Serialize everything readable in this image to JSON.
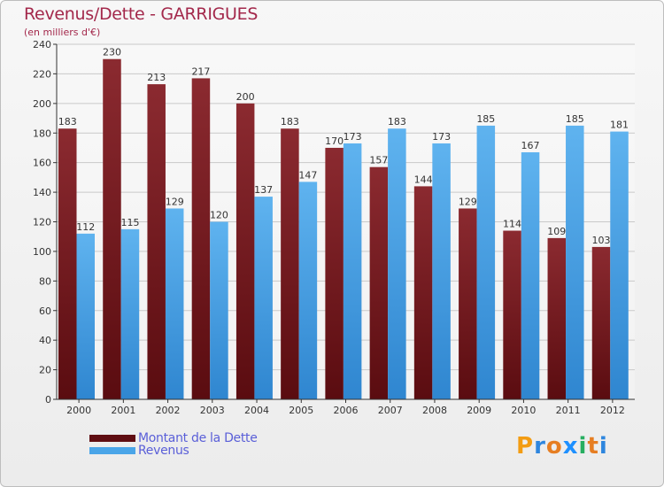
{
  "title": "Revenus/Dette - GARRIGUES",
  "subtitle": "(en milliers d'€)",
  "logo": {
    "text": "Proxiti",
    "colors": [
      "#f39c12",
      "#2e86de",
      "#e67e22",
      "#1e90ff",
      "#27ae60",
      "#e67e22",
      "#2e86de"
    ]
  },
  "chart_data": {
    "type": "bar",
    "categories": [
      "2000",
      "2001",
      "2002",
      "2003",
      "2004",
      "2005",
      "2006",
      "2007",
      "2008",
      "2009",
      "2010",
      "2011",
      "2012"
    ],
    "series": [
      {
        "name": "Montant de la Dette",
        "color": "#7a1f24",
        "values": [
          183,
          230,
          213,
          217,
          200,
          183,
          170,
          157,
          144,
          129,
          114,
          109,
          103
        ]
      },
      {
        "name": "Revenus",
        "color": "#4aa5e8",
        "values": [
          112,
          115,
          129,
          120,
          137,
          147,
          173,
          183,
          173,
          185,
          167,
          185,
          181
        ]
      }
    ],
    "ylim": [
      0,
      240
    ],
    "yticks": [
      0,
      20,
      40,
      60,
      80,
      100,
      120,
      140,
      160,
      180,
      200,
      220,
      240
    ],
    "grid": true,
    "legend": "bottom-left"
  }
}
